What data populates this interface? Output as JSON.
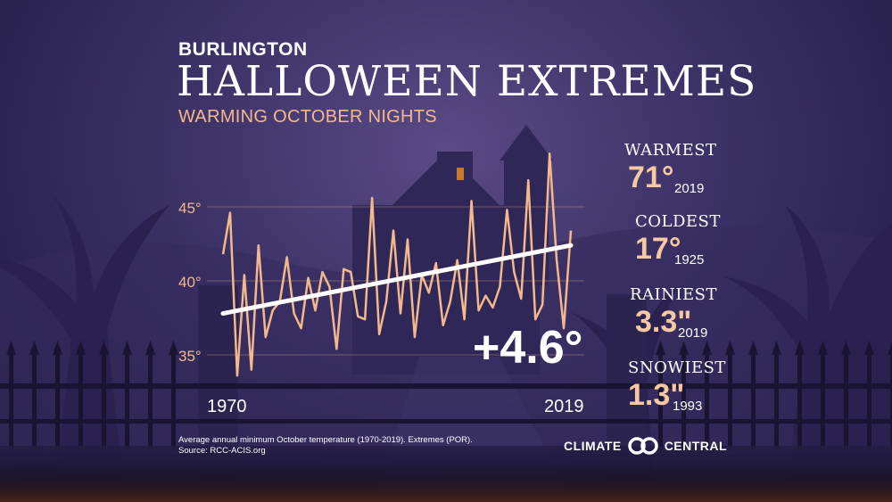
{
  "header": {
    "city": "BURLINGTON",
    "title": "HALLOWEEN EXTREMES",
    "subtitle": "WARMING OCTOBER NIGHTS"
  },
  "stats": [
    {
      "label": "WARMEST",
      "value": "71°",
      "year": "2019"
    },
    {
      "label": "COLDEST",
      "value": "17°",
      "year": "1925"
    },
    {
      "label": "RAINIEST",
      "value": "3.3\"",
      "year": "2019"
    },
    {
      "label": "SNOWIEST",
      "value": "1.3\"",
      "year": "1993"
    }
  ],
  "change": "+4.6°",
  "caption": {
    "line1": "Average annual minimum October temperature (1970-2019). Extremes (POR).",
    "line2": "Source: RCC-ACIS.org"
  },
  "logo": {
    "left": "CLIMATE",
    "right": "CENTRAL"
  },
  "colors": {
    "line": "#f3b98c",
    "trend": "#ffffff",
    "accent": "#f3b98c",
    "background": "#3d3368"
  },
  "chart_data": {
    "type": "line",
    "title": "Warming October nights",
    "x": [
      1970,
      1971,
      1972,
      1973,
      1974,
      1975,
      1976,
      1977,
      1978,
      1979,
      1980,
      1981,
      1982,
      1983,
      1984,
      1985,
      1986,
      1987,
      1988,
      1989,
      1990,
      1991,
      1992,
      1993,
      1994,
      1995,
      1996,
      1997,
      1998,
      1999,
      2000,
      2001,
      2002,
      2003,
      2004,
      2005,
      2006,
      2007,
      2008,
      2009,
      2010,
      2011,
      2012,
      2013,
      2014,
      2015,
      2016,
      2017,
      2018,
      2019
    ],
    "series": [
      {
        "name": "Average minimum October temperature",
        "values": [
          41.8,
          44.6,
          33.6,
          40.4,
          34.0,
          42.4,
          36.2,
          38.0,
          38.6,
          41.6,
          37.8,
          36.8,
          40.2,
          38.0,
          40.6,
          39.6,
          35.4,
          40.8,
          40.6,
          37.6,
          37.4,
          45.6,
          36.4,
          38.6,
          43.4,
          37.8,
          42.8,
          36.2,
          40.4,
          39.2,
          41.2,
          37.0,
          38.6,
          41.4,
          37.4,
          45.4,
          38.0,
          39.0,
          38.2,
          39.6,
          44.8,
          40.6,
          38.8,
          46.8,
          37.4,
          38.4,
          48.6,
          41.4,
          36.8,
          43.4
        ]
      },
      {
        "name": "Trend",
        "x": [
          1970,
          2019
        ],
        "values": [
          37.8,
          42.4
        ]
      }
    ],
    "yticks": [
      35,
      40,
      45
    ],
    "ytick_labels": [
      "35°",
      "40°",
      "45°"
    ],
    "xtick_labels": [
      "1970",
      "2019"
    ],
    "ylim": [
      33,
      48.6
    ],
    "xlim": [
      1970,
      2019
    ],
    "grid": true
  }
}
